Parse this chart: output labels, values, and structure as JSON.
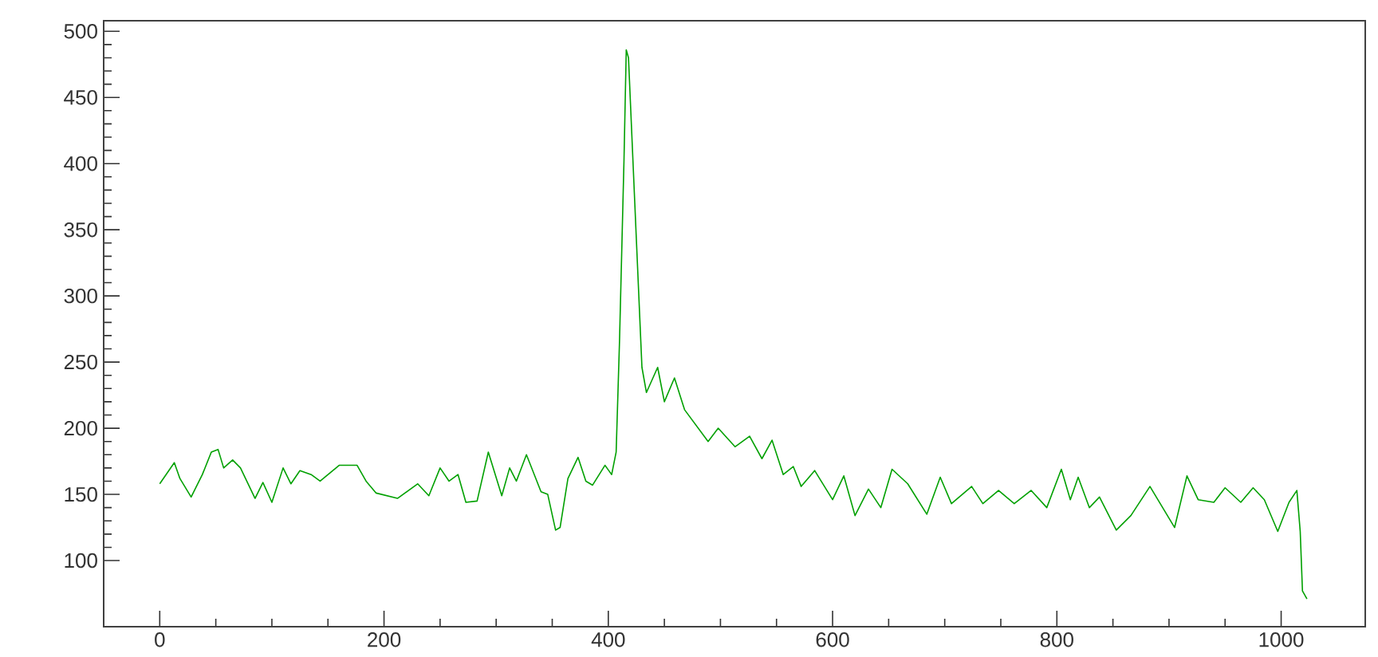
{
  "chart_data": {
    "type": "line",
    "color": "#00a000",
    "line_style": "solid",
    "grid": false,
    "xlim": [
      -50,
      1075
    ],
    "ylim": [
      50,
      508
    ],
    "xticks": [
      0,
      200,
      400,
      600,
      800,
      1000
    ],
    "yticks": [
      100,
      150,
      200,
      250,
      300,
      350,
      400,
      450,
      500
    ],
    "x": [
      0,
      13,
      18,
      28,
      38,
      46,
      52,
      57,
      65,
      72,
      85,
      92,
      100,
      110,
      117,
      125,
      135,
      143,
      160,
      176,
      184,
      193,
      212,
      230,
      240,
      250,
      258,
      266,
      273,
      283,
      293,
      305,
      312,
      318,
      327,
      340,
      346,
      353,
      357,
      364,
      373,
      380,
      386,
      397,
      403,
      407,
      410,
      414,
      416,
      418,
      425,
      430,
      434,
      444,
      450,
      459,
      468,
      489,
      498,
      513,
      526,
      537,
      546,
      556,
      565,
      572,
      584,
      600,
      610,
      620,
      632,
      643,
      653,
      667,
      684,
      696,
      706,
      724,
      734,
      748,
      762,
      777,
      791,
      804,
      812,
      819,
      829,
      838,
      853,
      866,
      883,
      905,
      916,
      926,
      940,
      950,
      964,
      975,
      985,
      997,
      1007,
      1014,
      1017,
      1019,
      1023
    ],
    "values": [
      158,
      174,
      162,
      148,
      165,
      182,
      184,
      170,
      176,
      170,
      147,
      159,
      144,
      170,
      158,
      168,
      165,
      160,
      172,
      172,
      160,
      151,
      147,
      158,
      149,
      170,
      160,
      165,
      144,
      145,
      182,
      149,
      170,
      160,
      180,
      152,
      150,
      123,
      125,
      162,
      178,
      160,
      157,
      172,
      165,
      182,
      266,
      403,
      486,
      480,
      343,
      246,
      227,
      246,
      220,
      238,
      214,
      190,
      200,
      186,
      194,
      177,
      191,
      165,
      171,
      156,
      168,
      146,
      164,
      134,
      154,
      140,
      169,
      158,
      135,
      163,
      143,
      156,
      143,
      153,
      143,
      153,
      140,
      169,
      146,
      163,
      140,
      148,
      123,
      134,
      156,
      125,
      164,
      146,
      144,
      155,
      144,
      155,
      146,
      122,
      144,
      153,
      122,
      77,
      71
    ]
  }
}
